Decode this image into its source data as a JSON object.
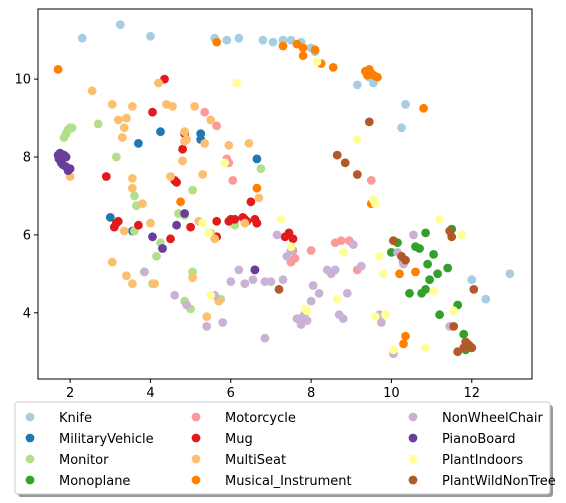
{
  "chart_data": {
    "type": "scatter",
    "title": "",
    "xlabel": "",
    "ylabel": "",
    "xlim": [
      1.2,
      13.5
    ],
    "ylim": [
      2.3,
      11.8
    ],
    "xticks": [
      2,
      4,
      6,
      8,
      10,
      12
    ],
    "yticks": [
      4,
      6,
      8,
      10
    ],
    "xtick_labels": [
      "2",
      "4",
      "6",
      "8",
      "10",
      "12"
    ],
    "ytick_labels": [
      "4",
      "6",
      "8",
      "10"
    ],
    "grid": false,
    "legend": {
      "placement": "bottom-center",
      "columns": 3
    },
    "series": [
      {
        "name": "Knife",
        "color": "#a6cee3",
        "points": [
          [
            2.3,
            11.05
          ],
          [
            3.25,
            11.4
          ],
          [
            4.0,
            11.1
          ],
          [
            5.6,
            11.05
          ],
          [
            5.9,
            11.0
          ],
          [
            6.2,
            11.05
          ],
          [
            6.8,
            11.0
          ],
          [
            7.05,
            10.95
          ],
          [
            7.3,
            11.0
          ],
          [
            7.5,
            11.0
          ],
          [
            7.75,
            10.95
          ],
          [
            8.0,
            10.8
          ],
          [
            8.1,
            10.7
          ],
          [
            9.15,
            9.85
          ],
          [
            9.45,
            10.05
          ],
          [
            9.55,
            9.9
          ],
          [
            10.35,
            9.35
          ],
          [
            10.25,
            8.75
          ],
          [
            12.0,
            4.85
          ],
          [
            12.35,
            4.35
          ],
          [
            12.95,
            5.0
          ]
        ]
      },
      {
        "name": "MilitaryVehicle",
        "color": "#1f78b4",
        "points": [
          [
            3.0,
            6.45
          ],
          [
            3.7,
            8.35
          ],
          [
            4.25,
            8.65
          ],
          [
            5.25,
            8.6
          ],
          [
            5.25,
            8.45
          ],
          [
            6.65,
            7.95
          ],
          [
            6.6,
            5.1
          ],
          [
            3.55,
            6.1
          ]
        ]
      },
      {
        "name": "Monitor",
        "color": "#b2df8a",
        "points": [
          [
            1.85,
            8.5
          ],
          [
            1.9,
            8.6
          ],
          [
            1.95,
            8.7
          ],
          [
            2.0,
            8.75
          ],
          [
            2.05,
            8.75
          ],
          [
            2.7,
            8.85
          ],
          [
            3.15,
            8.0
          ],
          [
            3.6,
            7.0
          ],
          [
            3.65,
            6.75
          ],
          [
            3.6,
            6.1
          ],
          [
            3.85,
            5.05
          ],
          [
            4.05,
            4.75
          ],
          [
            4.15,
            5.45
          ],
          [
            4.25,
            5.8
          ],
          [
            4.7,
            6.55
          ],
          [
            4.85,
            4.3
          ],
          [
            5.0,
            4.1
          ],
          [
            4.85,
            6.5
          ],
          [
            5.05,
            5.05
          ],
          [
            5.05,
            7.15
          ],
          [
            5.75,
            4.35
          ],
          [
            6.1,
            6.25
          ],
          [
            6.75,
            7.7
          ]
        ]
      },
      {
        "name": "Monoplane",
        "color": "#33a02c",
        "points": [
          [
            10.0,
            5.55
          ],
          [
            10.15,
            5.8
          ],
          [
            10.3,
            5.3
          ],
          [
            10.45,
            4.5
          ],
          [
            10.6,
            5.7
          ],
          [
            10.7,
            5.65
          ],
          [
            10.75,
            4.5
          ],
          [
            10.85,
            6.05
          ],
          [
            10.9,
            5.25
          ],
          [
            10.95,
            4.85
          ],
          [
            11.05,
            5.5
          ],
          [
            11.15,
            5.0
          ],
          [
            11.2,
            3.95
          ],
          [
            11.4,
            5.15
          ],
          [
            11.5,
            6.15
          ],
          [
            11.65,
            4.2
          ],
          [
            11.8,
            3.45
          ],
          [
            11.85,
            3.05
          ],
          [
            10.85,
            4.6
          ]
        ]
      },
      {
        "name": "Motorcycle",
        "color": "#fb9a99",
        "points": [
          [
            5.35,
            9.15
          ],
          [
            5.65,
            8.8
          ],
          [
            5.9,
            7.95
          ],
          [
            5.95,
            7.85
          ],
          [
            6.05,
            7.4
          ],
          [
            7.5,
            5.3
          ],
          [
            7.55,
            5.6
          ],
          [
            7.6,
            5.4
          ],
          [
            8.0,
            5.6
          ],
          [
            8.6,
            5.8
          ],
          [
            8.75,
            5.85
          ],
          [
            8.95,
            5.85
          ],
          [
            9.15,
            5.1
          ],
          [
            9.5,
            7.4
          ],
          [
            9.55,
            6.85
          ]
        ]
      },
      {
        "name": "Mug",
        "color": "#e31a1c",
        "points": [
          [
            2.9,
            7.5
          ],
          [
            3.1,
            6.2
          ],
          [
            3.15,
            6.3
          ],
          [
            3.2,
            6.35
          ],
          [
            3.7,
            6.25
          ],
          [
            4.05,
            9.15
          ],
          [
            4.35,
            10.0
          ],
          [
            4.5,
            5.9
          ],
          [
            4.6,
            7.4
          ],
          [
            4.65,
            7.35
          ],
          [
            4.8,
            8.2
          ],
          [
            4.85,
            8.6
          ],
          [
            5.0,
            6.2
          ],
          [
            5.65,
            6.35
          ],
          [
            5.65,
            5.95
          ],
          [
            5.95,
            6.35
          ],
          [
            6.0,
            6.4
          ],
          [
            6.1,
            6.4
          ],
          [
            6.3,
            6.45
          ],
          [
            6.35,
            6.4
          ],
          [
            6.4,
            6.35
          ],
          [
            6.5,
            6.85
          ],
          [
            6.6,
            6.4
          ],
          [
            6.65,
            6.3
          ],
          [
            7.35,
            5.95
          ],
          [
            7.45,
            6.05
          ],
          [
            7.55,
            5.9
          ]
        ]
      },
      {
        "name": "MultiSeat",
        "color": "#fdbf6f",
        "points": [
          [
            2.0,
            7.5
          ],
          [
            2.55,
            9.7
          ],
          [
            3.05,
            9.35
          ],
          [
            3.2,
            8.95
          ],
          [
            3.3,
            8.5
          ],
          [
            3.35,
            8.75
          ],
          [
            3.4,
            9.0
          ],
          [
            3.55,
            9.3
          ],
          [
            3.55,
            7.45
          ],
          [
            3.55,
            7.2
          ],
          [
            3.8,
            6.8
          ],
          [
            3.35,
            6.1
          ],
          [
            3.05,
            5.3
          ],
          [
            3.4,
            4.95
          ],
          [
            3.55,
            4.75
          ],
          [
            4.0,
            6.3
          ],
          [
            4.1,
            4.75
          ],
          [
            4.2,
            9.9
          ],
          [
            4.4,
            9.35
          ],
          [
            4.55,
            9.3
          ],
          [
            4.5,
            7.5
          ],
          [
            4.85,
            8.4
          ],
          [
            4.8,
            7.9
          ],
          [
            4.85,
            8.65
          ],
          [
            4.9,
            8.45
          ],
          [
            5.05,
            4.9
          ],
          [
            5.1,
            9.3
          ],
          [
            5.2,
            6.35
          ],
          [
            5.3,
            7.55
          ],
          [
            5.35,
            8.35
          ],
          [
            5.4,
            3.9
          ],
          [
            5.5,
            8.95
          ],
          [
            5.5,
            6.05
          ],
          [
            5.6,
            5.9
          ],
          [
            5.7,
            4.3
          ],
          [
            5.95,
            8.3
          ],
          [
            6.35,
            6.3
          ],
          [
            6.45,
            8.35
          ],
          [
            6.7,
            6.95
          ]
        ]
      },
      {
        "name": "Musical_Instrument",
        "color": "#ff7f00",
        "points": [
          [
            1.7,
            10.25
          ],
          [
            5.65,
            10.95
          ],
          [
            7.3,
            10.85
          ],
          [
            7.65,
            10.9
          ],
          [
            7.8,
            10.8
          ],
          [
            7.8,
            10.6
          ],
          [
            8.25,
            10.4
          ],
          [
            8.1,
            10.75
          ],
          [
            8.55,
            10.3
          ],
          [
            9.35,
            10.2
          ],
          [
            9.4,
            10.1
          ],
          [
            9.45,
            10.25
          ],
          [
            9.5,
            10.15
          ],
          [
            9.55,
            10.1
          ],
          [
            9.65,
            10.05
          ],
          [
            10.8,
            9.25
          ],
          [
            9.5,
            6.8
          ],
          [
            6.65,
            7.2
          ],
          [
            4.75,
            6.85
          ],
          [
            10.2,
            5.0
          ],
          [
            10.3,
            3.2
          ],
          [
            10.35,
            3.4
          ],
          [
            10.6,
            5.05
          ]
        ]
      },
      {
        "name": "NonWheelChair",
        "color": "#cab2d6",
        "points": [
          [
            3.85,
            5.05
          ],
          [
            4.6,
            4.45
          ],
          [
            4.9,
            4.2
          ],
          [
            5.4,
            3.65
          ],
          [
            5.6,
            4.45
          ],
          [
            5.8,
            3.75
          ],
          [
            6.0,
            4.8
          ],
          [
            6.2,
            5.1
          ],
          [
            6.35,
            4.75
          ],
          [
            6.55,
            4.85
          ],
          [
            6.85,
            3.35
          ],
          [
            6.85,
            4.8
          ],
          [
            7.0,
            4.8
          ],
          [
            7.15,
            6.0
          ],
          [
            7.4,
            5.45
          ],
          [
            7.3,
            4.85
          ],
          [
            7.5,
            5.6
          ],
          [
            7.65,
            3.85
          ],
          [
            7.75,
            3.7
          ],
          [
            7.8,
            3.9
          ],
          [
            7.85,
            4.0
          ],
          [
            7.9,
            3.8
          ],
          [
            8.0,
            4.3
          ],
          [
            8.05,
            4.7
          ],
          [
            8.2,
            4.5
          ],
          [
            8.4,
            5.1
          ],
          [
            8.5,
            5.0
          ],
          [
            8.6,
            5.1
          ],
          [
            8.7,
            3.95
          ],
          [
            8.8,
            3.85
          ],
          [
            8.9,
            4.5
          ],
          [
            9.05,
            5.75
          ],
          [
            9.25,
            5.2
          ],
          [
            9.7,
            3.95
          ],
          [
            9.75,
            3.75
          ],
          [
            10.05,
            2.95
          ],
          [
            10.15,
            5.55
          ],
          [
            10.3,
            5.25
          ],
          [
            10.55,
            6.0
          ],
          [
            11.45,
            3.65
          ]
        ]
      },
      {
        "name": "PianoBoard",
        "color": "#6a3d9a",
        "points": [
          [
            1.7,
            8.05
          ],
          [
            1.72,
            7.95
          ],
          [
            1.75,
            8.1
          ],
          [
            1.78,
            7.85
          ],
          [
            1.8,
            7.95
          ],
          [
            1.82,
            7.8
          ],
          [
            1.85,
            8.05
          ],
          [
            1.9,
            7.75
          ],
          [
            1.9,
            8.0
          ],
          [
            1.95,
            7.65
          ],
          [
            2.0,
            7.7
          ],
          [
            4.05,
            5.95
          ],
          [
            4.3,
            5.65
          ],
          [
            4.65,
            6.25
          ],
          [
            4.85,
            6.55
          ],
          [
            6.6,
            5.1
          ]
        ]
      },
      {
        "name": "PlantIndoors",
        "color": "#ffff99",
        "points": [
          [
            6.15,
            9.9
          ],
          [
            5.85,
            7.85
          ],
          [
            5.3,
            6.3
          ],
          [
            5.45,
            6.05
          ],
          [
            5.5,
            4.45
          ],
          [
            7.25,
            6.4
          ],
          [
            7.5,
            5.7
          ],
          [
            7.85,
            4.1
          ],
          [
            7.9,
            4.05
          ],
          [
            8.15,
            10.45
          ],
          [
            8.65,
            4.35
          ],
          [
            8.8,
            5.55
          ],
          [
            9.15,
            8.45
          ],
          [
            9.6,
            6.8
          ],
          [
            9.7,
            5.45
          ],
          [
            9.8,
            5.0
          ],
          [
            9.85,
            3.95
          ],
          [
            9.6,
            3.9
          ],
          [
            9.55,
            6.9
          ],
          [
            10.05,
            3.05
          ],
          [
            10.85,
            3.1
          ],
          [
            11.05,
            4.55
          ],
          [
            11.2,
            6.4
          ],
          [
            11.55,
            4.05
          ],
          [
            11.75,
            6.0
          ]
        ]
      },
      {
        "name": "PlantWildNonTree",
        "color": "#b15928",
        "points": [
          [
            7.2,
            4.6
          ],
          [
            8.65,
            8.05
          ],
          [
            8.85,
            7.85
          ],
          [
            9.15,
            7.55
          ],
          [
            9.45,
            8.9
          ],
          [
            10.05,
            5.85
          ],
          [
            10.25,
            5.45
          ],
          [
            10.35,
            5.35
          ],
          [
            11.45,
            6.1
          ],
          [
            11.5,
            5.95
          ],
          [
            11.55,
            3.65
          ],
          [
            11.65,
            3.0
          ],
          [
            11.8,
            3.1
          ],
          [
            11.85,
            3.25
          ],
          [
            11.9,
            3.2
          ],
          [
            11.95,
            3.15
          ],
          [
            12.0,
            3.1
          ],
          [
            12.05,
            4.6
          ]
        ]
      }
    ]
  }
}
